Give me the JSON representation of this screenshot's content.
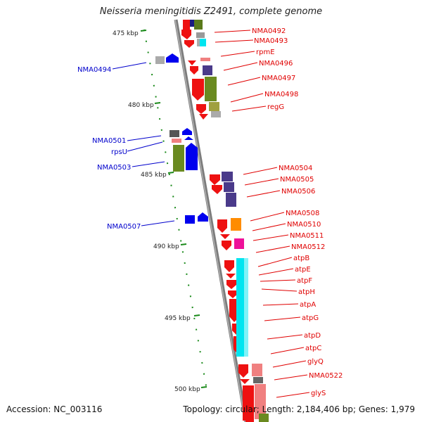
{
  "title": "Neisseria meningitidis Z2491, complete genome",
  "footer": {
    "accession": "Accession: NC_003116",
    "info": "Topology: circular; Length: 2,184,406 bp; Genes: 1,979"
  },
  "scale_labels": [
    "475 kbp",
    "480 kbp",
    "485 kbp",
    "490 kbp",
    "495 kbp",
    "500 kbp"
  ],
  "right_genes": [
    "NMA0492",
    "NMA0493",
    "rpmE",
    "NMA0496",
    "NMA0497",
    "NMA0498",
    "regG",
    "NMA0504",
    "NMA0505",
    "NMA0506",
    "NMA0508",
    "NMA0510",
    "NMA0511",
    "NMA0512",
    "atpB",
    "atpE",
    "atpF",
    "atpH",
    "atpA",
    "atpG",
    "atpD",
    "atpC",
    "glyQ",
    "NMA0522",
    "glyS"
  ],
  "left_genes": [
    "NMA0494",
    "NMA0501",
    "rpsU",
    "NMA0503",
    "NMA0507"
  ],
  "colors": {
    "forward_cds": "#ee1111",
    "reverse_cds": "#0000ee",
    "gene_label_forward": "#e00000",
    "gene_label_reverse": "#0000cc",
    "scale_tick": "#118811",
    "backbone": "#888888"
  }
}
